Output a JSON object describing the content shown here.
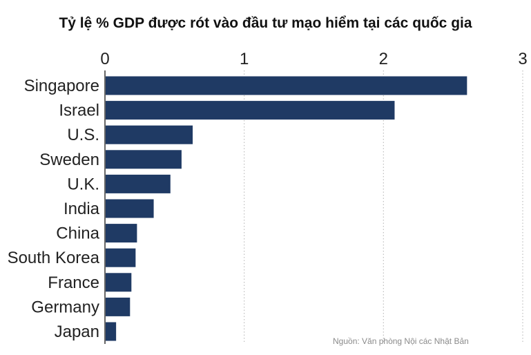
{
  "chart_data": {
    "type": "bar",
    "orientation": "horizontal",
    "title": "Tỷ lệ % GDP được rót vào đầu tư mạo hiểm tại các quốc gia",
    "categories": [
      "Singapore",
      "Israel",
      "U.S.",
      "Sweden",
      "U.K.",
      "India",
      "China",
      "South Korea",
      "France",
      "Germany",
      "Japan"
    ],
    "values": [
      2.6,
      2.08,
      0.63,
      0.55,
      0.47,
      0.35,
      0.23,
      0.22,
      0.19,
      0.18,
      0.08
    ],
    "xlim": [
      0,
      3
    ],
    "xticks": [
      "0",
      "1",
      "2",
      "3"
    ],
    "xaxis_position": "top",
    "grid": "vertical-dotted",
    "bar_color": "#1f3a64",
    "source": "Nguồn: Văn phòng Nội các Nhật Bản"
  }
}
